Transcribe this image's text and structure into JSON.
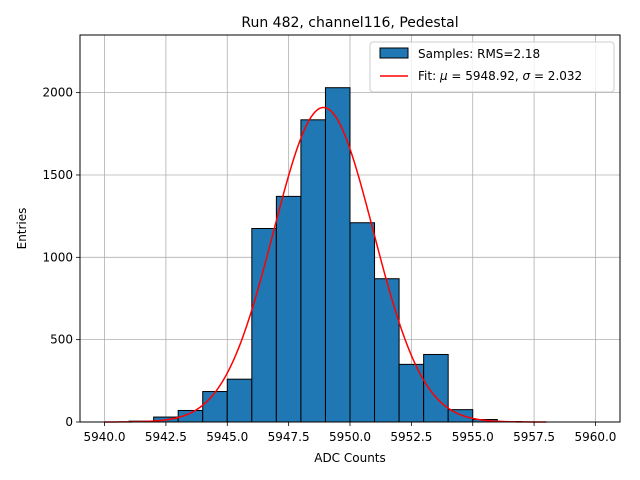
{
  "chart_data": {
    "type": "bar",
    "title": "Run 482, channel116, Pedestal",
    "xlabel": "ADC Counts",
    "ylabel": "Entries",
    "xlim": [
      5939.0,
      5961.0
    ],
    "ylim": [
      0,
      2350
    ],
    "grid": true,
    "x_ticks": [
      5940.0,
      5942.5,
      5945.0,
      5947.5,
      5950.0,
      5952.5,
      5955.0,
      5957.5,
      5960.0
    ],
    "x_tick_labels": [
      "5940.0",
      "5942.5",
      "5945.0",
      "5947.5",
      "5950.0",
      "5952.5",
      "5955.0",
      "5957.5",
      "5960.0"
    ],
    "y_ticks": [
      0,
      500,
      1000,
      1500,
      2000
    ],
    "y_tick_labels": [
      "0",
      "500",
      "1000",
      "1500",
      "2000"
    ],
    "histogram": {
      "name": "Samples: RMS=2.18",
      "color": "#1f77b4",
      "edge_color": "#000000",
      "bins": [
        {
          "x0": 5941.0,
          "x1": 5942.0,
          "count": 5
        },
        {
          "x0": 5942.0,
          "x1": 5943.0,
          "count": 30
        },
        {
          "x0": 5943.0,
          "x1": 5944.0,
          "count": 70
        },
        {
          "x0": 5944.0,
          "x1": 5945.0,
          "count": 185
        },
        {
          "x0": 5945.0,
          "x1": 5946.0,
          "count": 260
        },
        {
          "x0": 5946.0,
          "x1": 5947.0,
          "count": 1175
        },
        {
          "x0": 5947.0,
          "x1": 5948.0,
          "count": 1370
        },
        {
          "x0": 5948.0,
          "x1": 5949.0,
          "count": 1835
        },
        {
          "x0": 5949.0,
          "x1": 5950.0,
          "count": 2030
        },
        {
          "x0": 5950.0,
          "x1": 5951.0,
          "count": 1210
        },
        {
          "x0": 5951.0,
          "x1": 5952.0,
          "count": 870
        },
        {
          "x0": 5952.0,
          "x1": 5953.0,
          "count": 350
        },
        {
          "x0": 5953.0,
          "x1": 5954.0,
          "count": 410
        },
        {
          "x0": 5954.0,
          "x1": 5955.0,
          "count": 75
        },
        {
          "x0": 5955.0,
          "x1": 5956.0,
          "count": 15
        },
        {
          "x0": 5956.0,
          "x1": 5957.0,
          "count": 3
        }
      ]
    },
    "fit": {
      "name_prefix": "Fit: ",
      "name": "Fit: μ = 5948.92, σ = 2.032",
      "mu_symbol": "μ",
      "sigma_symbol": "σ",
      "mu_text": " = 5948.92, ",
      "sigma_text": " = 2.032",
      "color": "#ff0000",
      "mu": 5948.92,
      "sigma": 2.032,
      "amplitude": 1910,
      "x_range": [
        5940.0,
        5958.0
      ]
    },
    "legend_location": "top-right"
  }
}
